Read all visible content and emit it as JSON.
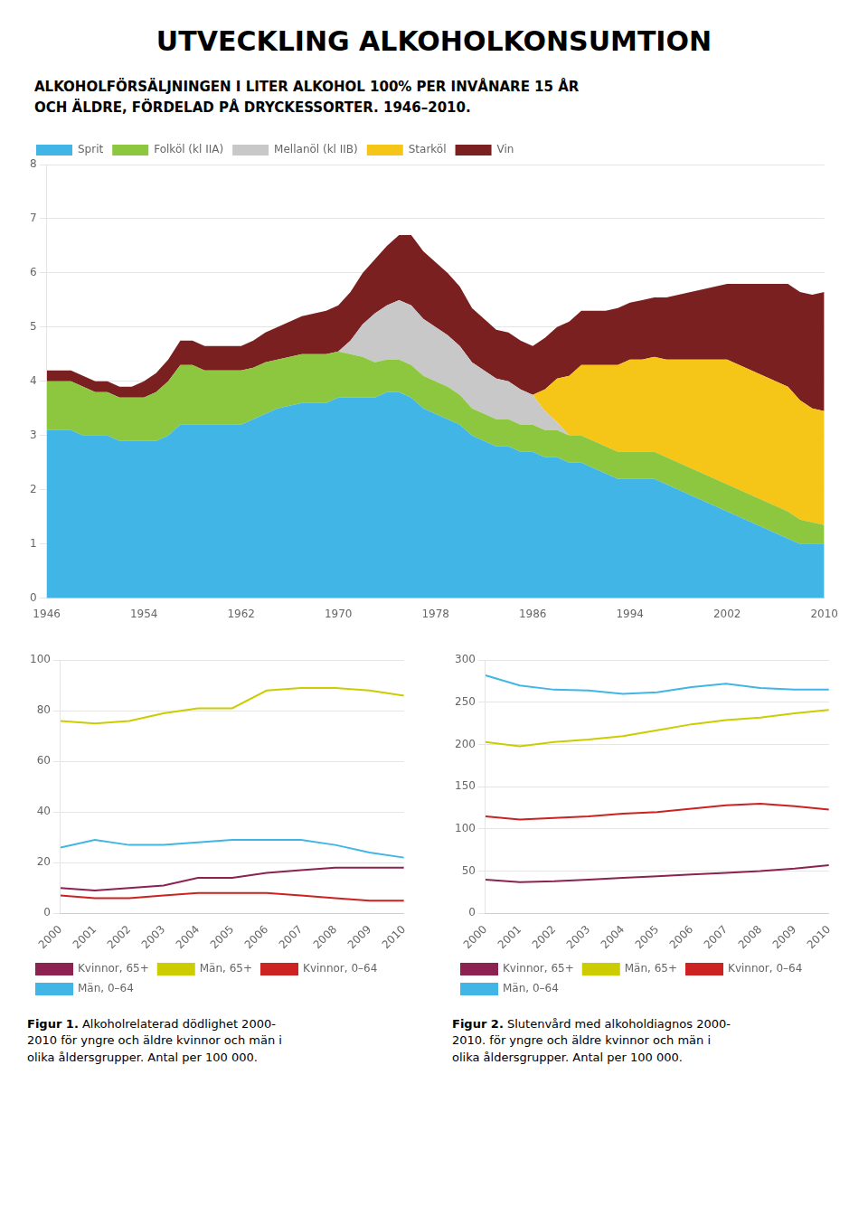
{
  "chart_data": [
    {
      "type": "area",
      "stacked": true,
      "title": "UTVECKLING ALKOHOLKONSUMTION",
      "subtitle": "ALKOHOLFÖRSÄLJNINGEN I LITER ALKOHOL 100% PER INVÅNARE 15 ÅR\nOCH ÄLDRE, FÖRDELAD PÅ DRYCKESSORTER. 1946–2010.",
      "x": [
        1946,
        1947,
        1948,
        1949,
        1950,
        1951,
        1952,
        1953,
        1954,
        1955,
        1956,
        1957,
        1958,
        1959,
        1960,
        1961,
        1962,
        1963,
        1964,
        1965,
        1966,
        1967,
        1968,
        1969,
        1970,
        1971,
        1972,
        1973,
        1974,
        1975,
        1976,
        1977,
        1978,
        1979,
        1980,
        1981,
        1982,
        1983,
        1984,
        1985,
        1986,
        1987,
        1988,
        1989,
        1990,
        1991,
        1992,
        1993,
        1994,
        1995,
        1996,
        1997,
        1998,
        1999,
        2000,
        2001,
        2002,
        2003,
        2004,
        2005,
        2006,
        2007,
        2008,
        2009,
        2010
      ],
      "series": [
        {
          "name": "Sprit",
          "color": "#41B6E6",
          "values": [
            3.1,
            3.1,
            3.1,
            3.0,
            3.0,
            3.0,
            2.9,
            2.9,
            2.9,
            2.9,
            3.0,
            3.2,
            3.2,
            3.2,
            3.2,
            3.2,
            3.2,
            3.3,
            3.4,
            3.5,
            3.55,
            3.6,
            3.6,
            3.6,
            3.7,
            3.7,
            3.7,
            3.7,
            3.8,
            3.8,
            3.7,
            3.5,
            3.4,
            3.3,
            3.2,
            3.0,
            2.9,
            2.8,
            2.8,
            2.7,
            2.7,
            2.6,
            2.6,
            2.5,
            2.5,
            2.4,
            2.3,
            2.2,
            2.2,
            2.2,
            2.2,
            2.1,
            2.0,
            1.9,
            1.8,
            1.7,
            1.6,
            1.5,
            1.4,
            1.3,
            1.2,
            1.1,
            1.0,
            1.0,
            1.0
          ]
        },
        {
          "name": "Folköl (kl IIA)",
          "color": "#8DC63F",
          "values": [
            0.9,
            0.9,
            0.9,
            0.9,
            0.8,
            0.8,
            0.8,
            0.8,
            0.8,
            0.9,
            1.0,
            1.1,
            1.1,
            1.0,
            1.0,
            1.0,
            1.0,
            0.95,
            0.95,
            0.9,
            0.9,
            0.9,
            0.9,
            0.9,
            0.85,
            0.8,
            0.75,
            0.65,
            0.6,
            0.6,
            0.6,
            0.6,
            0.6,
            0.6,
            0.55,
            0.5,
            0.5,
            0.5,
            0.5,
            0.5,
            0.5,
            0.5,
            0.5,
            0.5,
            0.5,
            0.5,
            0.5,
            0.5,
            0.5,
            0.5,
            0.5,
            0.5,
            0.5,
            0.5,
            0.5,
            0.5,
            0.5,
            0.5,
            0.5,
            0.5,
            0.5,
            0.5,
            0.45,
            0.4,
            0.35
          ]
        },
        {
          "name": "Mellanöl (kl IIB)",
          "color": "#C8C8C8",
          "values": [
            0.0,
            0.0,
            0.0,
            0.0,
            0.0,
            0.0,
            0.0,
            0.0,
            0.0,
            0.0,
            0.0,
            0.0,
            0.0,
            0.0,
            0.0,
            0.0,
            0.0,
            0.0,
            0.0,
            0.0,
            0.0,
            0.0,
            0.0,
            0.0,
            0.0,
            0.25,
            0.6,
            0.9,
            1.0,
            1.1,
            1.1,
            1.05,
            1.0,
            0.95,
            0.9,
            0.85,
            0.8,
            0.75,
            0.7,
            0.65,
            0.55,
            0.35,
            0.15,
            0.0,
            0.0,
            0.0,
            0.0,
            0.0,
            0.0,
            0.0,
            0.0,
            0.0,
            0.0,
            0.0,
            0.0,
            0.0,
            0.0,
            0.0,
            0.0,
            0.0,
            0.0,
            0.0,
            0.0,
            0.0,
            0.0
          ]
        },
        {
          "name": "Starköl",
          "color": "#F5C518",
          "values": [
            0.0,
            0.0,
            0.0,
            0.0,
            0.0,
            0.0,
            0.0,
            0.0,
            0.0,
            0.0,
            0.0,
            0.0,
            0.0,
            0.0,
            0.0,
            0.0,
            0.0,
            0.0,
            0.0,
            0.0,
            0.0,
            0.0,
            0.0,
            0.0,
            0.0,
            0.0,
            0.0,
            0.0,
            0.0,
            0.0,
            0.0,
            0.0,
            0.0,
            0.0,
            0.0,
            0.0,
            0.0,
            0.0,
            0.0,
            0.0,
            0.0,
            0.4,
            0.8,
            1.1,
            1.3,
            1.4,
            1.5,
            1.6,
            1.7,
            1.7,
            1.75,
            1.8,
            1.9,
            2.0,
            2.1,
            2.2,
            2.3,
            2.3,
            2.3,
            2.3,
            2.3,
            2.3,
            2.2,
            2.1,
            2.1
          ]
        },
        {
          "name": "Vin",
          "color": "#7B2020",
          "values": [
            0.2,
            0.2,
            0.2,
            0.2,
            0.2,
            0.2,
            0.2,
            0.2,
            0.3,
            0.35,
            0.4,
            0.45,
            0.45,
            0.45,
            0.45,
            0.45,
            0.45,
            0.5,
            0.55,
            0.6,
            0.65,
            0.7,
            0.75,
            0.8,
            0.85,
            0.9,
            0.95,
            1.0,
            1.1,
            1.2,
            1.3,
            1.25,
            1.2,
            1.15,
            1.1,
            1.0,
            0.95,
            0.9,
            0.9,
            0.9,
            0.9,
            0.95,
            0.95,
            1.0,
            1.0,
            1.0,
            1.0,
            1.05,
            1.05,
            1.1,
            1.1,
            1.15,
            1.2,
            1.25,
            1.3,
            1.35,
            1.4,
            1.5,
            1.6,
            1.7,
            1.8,
            1.9,
            2.0,
            2.1,
            2.2
          ]
        }
      ],
      "xlim": [
        1946,
        2010
      ],
      "xticks": [
        1946,
        1954,
        1962,
        1970,
        1978,
        1986,
        1994,
        2002,
        2010
      ],
      "ylim": [
        0,
        8
      ],
      "yticks": [
        0,
        1,
        2,
        3,
        4,
        5,
        6,
        7,
        8
      ],
      "grid": "y",
      "legend": "top"
    },
    {
      "type": "line",
      "x": [
        2000,
        2001,
        2002,
        2003,
        2004,
        2005,
        2006,
        2007,
        2008,
        2009,
        2010
      ],
      "series": [
        {
          "name": "Kvinnor, 65+",
          "color": "#8B2252",
          "values": [
            10,
            9,
            10,
            11,
            14,
            14,
            16,
            17,
            18,
            18,
            18
          ]
        },
        {
          "name": "Män, 65+",
          "color": "#CCCC00",
          "values": [
            76,
            75,
            76,
            79,
            81,
            81,
            88,
            89,
            89,
            88,
            86
          ]
        },
        {
          "name": "Kvinnor, 0–64",
          "color": "#CC2222",
          "values": [
            7,
            6,
            6,
            7,
            8,
            8,
            8,
            7,
            6,
            5,
            5
          ]
        },
        {
          "name": "Män, 0–64",
          "color": "#41B6E6",
          "values": [
            26,
            29,
            27,
            27,
            28,
            29,
            29,
            29,
            27,
            24,
            22
          ]
        }
      ],
      "xlim": [
        2000,
        2010
      ],
      "xticks": [
        2000,
        2001,
        2002,
        2003,
        2004,
        2005,
        2006,
        2007,
        2008,
        2009,
        2010
      ],
      "ylim": [
        0,
        100
      ],
      "yticks": [
        0,
        20,
        40,
        60,
        80,
        100
      ],
      "grid": "y",
      "legend": "bottom",
      "annotations": [
        "Figur 1.",
        " Alkoholrelaterad dödlighet 2000-\n2010 för yngre och äldre kvinnor och män i\nolika åldersgrupper. Antal per 100 000."
      ]
    },
    {
      "type": "line",
      "x": [
        2000,
        2001,
        2002,
        2003,
        2004,
        2005,
        2006,
        2007,
        2008,
        2009,
        2010
      ],
      "series": [
        {
          "name": "Kvinnor, 65+",
          "color": "#8B2252",
          "values": [
            40,
            37,
            38,
            40,
            42,
            44,
            46,
            48,
            50,
            53,
            57
          ]
        },
        {
          "name": "Män, 65+",
          "color": "#CCCC00",
          "values": [
            203,
            198,
            203,
            206,
            210,
            217,
            224,
            229,
            232,
            237,
            241
          ]
        },
        {
          "name": "Kvinnor, 0–64",
          "color": "#CC2222",
          "values": [
            115,
            111,
            113,
            115,
            118,
            120,
            124,
            128,
            130,
            127,
            123
          ]
        },
        {
          "name": "Män, 0–64",
          "color": "#41B6E6",
          "values": [
            282,
            270,
            265,
            264,
            260,
            262,
            268,
            272,
            267,
            265,
            265
          ]
        }
      ],
      "xlim": [
        2000,
        2010
      ],
      "xticks": [
        2000,
        2001,
        2002,
        2003,
        2004,
        2005,
        2006,
        2007,
        2008,
        2009,
        2010
      ],
      "ylim": [
        0,
        300
      ],
      "yticks": [
        0,
        50,
        100,
        150,
        200,
        250,
        300
      ],
      "grid": "y",
      "legend": "bottom",
      "annotations": [
        "Figur 2.",
        " Slutenvård med alkoholdiagnos 2000-\n2010. för yngre och äldre kvinnor och män i\nolika åldersgrupper. Antal per 100 000."
      ]
    }
  ]
}
